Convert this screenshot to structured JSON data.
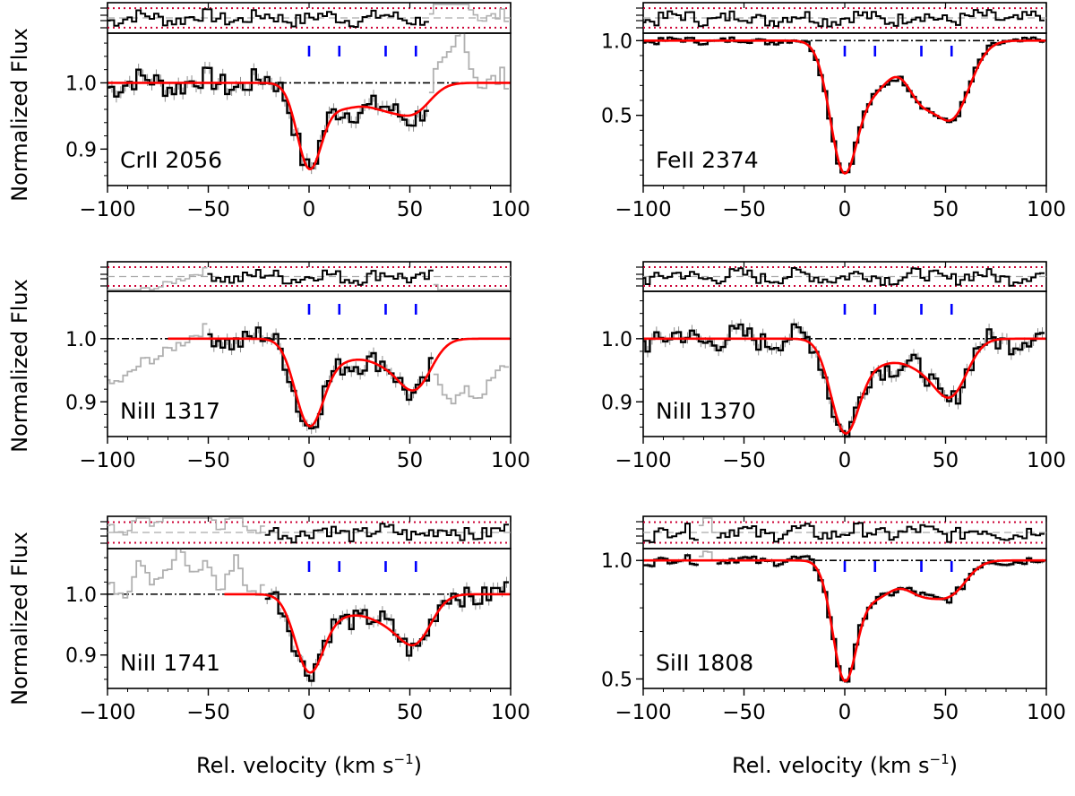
{
  "figure": {
    "ylabel": "Normalized Flux",
    "xlabel_main": "Rel. velocity  (km s",
    "xlabel_sup": "−1",
    "xlabel_close": ")"
  },
  "colors": {
    "data": "#000000",
    "masked": "#b0b0b0",
    "errbar": "#8c8c8c",
    "model": "#ff0000",
    "continuum": "#000000",
    "residual_band": "#cc0033",
    "component_ticks": "#0000ff",
    "residual_zero": "#aaaaaa"
  },
  "chart_data": [
    {
      "type": "line",
      "title": "CrII 2056",
      "xlim": [
        -100,
        100
      ],
      "ylim": [
        0.845,
        1.075
      ],
      "xticks": [
        -100,
        -50,
        0,
        50,
        100
      ],
      "xtick_labels": [
        "−100",
        "−50",
        "0",
        "50",
        "100"
      ],
      "yticks": [
        0.9,
        1.0
      ],
      "ytick_labels": [
        "0.9",
        "1.0"
      ],
      "component_velocities": [
        0,
        15,
        38,
        53
      ],
      "continuum": 1.0,
      "model": {
        "depths": [
          0.12,
          0.035,
          0.035,
          0.035
        ],
        "widths": [
          6,
          10,
          10,
          8
        ]
      },
      "noise": 0.01,
      "valid_range": [
        -100,
        60
      ],
      "masked_emission": [
        [
          62,
          1.01
        ],
        [
          68,
          1.03
        ],
        [
          72,
          1.05
        ],
        [
          76,
          1.09
        ],
        [
          80,
          1.03
        ],
        [
          85,
          1.0
        ]
      ],
      "masked_absorption": []
    },
    {
      "type": "line",
      "title": "FeII 2374",
      "xlim": [
        -100,
        100
      ],
      "ylim": [
        0.03,
        1.05
      ],
      "xticks": [
        -100,
        -50,
        0,
        50,
        100
      ],
      "xtick_labels": [
        "−100",
        "−50",
        "0",
        "50",
        "100"
      ],
      "yticks": [
        0.5,
        1.0
      ],
      "ytick_labels": [
        "0.5",
        "1.0"
      ],
      "component_velocities": [
        0,
        15,
        38,
        53
      ],
      "continuum": 1.0,
      "model": {
        "depths": [
          0.88,
          0.3,
          0.35,
          0.5
        ],
        "widths": [
          7,
          9,
          8,
          9
        ]
      },
      "noise": 0.012,
      "valid_range": [
        -100,
        100
      ],
      "masked_emission": [],
      "masked_absorption": []
    },
    {
      "type": "line",
      "title": "NiII 1317",
      "xlim": [
        -100,
        100
      ],
      "ylim": [
        0.845,
        1.075
      ],
      "xticks": [
        -100,
        -50,
        0,
        50,
        100
      ],
      "xtick_labels": [
        "−100",
        "−50",
        "0",
        "50",
        "100"
      ],
      "yticks": [
        0.9,
        1.0
      ],
      "ytick_labels": [
        "0.9",
        "1.0"
      ],
      "component_velocities": [
        0,
        15,
        38,
        53
      ],
      "continuum": 1.0,
      "model": {
        "depths": [
          0.13,
          0.03,
          0.035,
          0.07
        ],
        "widths": [
          7,
          10,
          10,
          8
        ]
      },
      "noise": 0.01,
      "valid_range": [
        -50,
        62
      ],
      "masked_emission": [],
      "masked_absorption": [
        [
          [
            -100,
            0.93
          ],
          [
            -90,
            0.94
          ],
          [
            -82,
            0.96
          ],
          [
            -75,
            0.97
          ],
          [
            -68,
            0.99
          ],
          [
            -60,
            1.0
          ],
          [
            -52,
            1.01
          ]
        ],
        [
          [
            62,
            0.94
          ],
          [
            68,
            0.91
          ],
          [
            72,
            0.9
          ],
          [
            78,
            0.92
          ],
          [
            84,
            0.91
          ],
          [
            90,
            0.93
          ],
          [
            96,
            0.95
          ],
          [
            100,
            0.96
          ]
        ]
      ]
    },
    {
      "type": "line",
      "title": "NiII 1370",
      "xlim": [
        -100,
        100
      ],
      "ylim": [
        0.845,
        1.075
      ],
      "xticks": [
        -100,
        -50,
        0,
        50,
        100
      ],
      "xtick_labels": [
        "−100",
        "−50",
        "0",
        "50",
        "100"
      ],
      "yticks": [
        0.9,
        1.0
      ],
      "ytick_labels": [
        "0.9",
        "1.0"
      ],
      "component_velocities": [
        0,
        15,
        38,
        53
      ],
      "continuum": 1.0,
      "model": {
        "depths": [
          0.14,
          0.035,
          0.04,
          0.08
        ],
        "widths": [
          7,
          10,
          10,
          8
        ]
      },
      "noise": 0.01,
      "valid_range": [
        -100,
        100
      ],
      "masked_emission": [],
      "masked_absorption": []
    },
    {
      "type": "line",
      "title": "NiII 1741",
      "xlim": [
        -100,
        100
      ],
      "ylim": [
        0.845,
        1.075
      ],
      "xticks": [
        -100,
        -50,
        0,
        50,
        100
      ],
      "xtick_labels": [
        "−100",
        "−50",
        "0",
        "50",
        "100"
      ],
      "yticks": [
        0.9,
        1.0
      ],
      "ytick_labels": [
        "0.9",
        "1.0"
      ],
      "component_velocities": [
        0,
        15,
        38,
        53
      ],
      "continuum": 1.0,
      "model": {
        "depths": [
          0.12,
          0.03,
          0.04,
          0.07
        ],
        "widths": [
          7,
          10,
          10,
          8
        ]
      },
      "noise": 0.01,
      "valid_range": [
        -22,
        100
      ],
      "masked_emission": [
        [
          -100,
          1.02
        ],
        [
          -90,
          1.0
        ],
        [
          -84,
          1.06
        ],
        [
          -78,
          1.02
        ],
        [
          -70,
          1.04
        ],
        [
          -64,
          1.08
        ],
        [
          -58,
          1.03
        ],
        [
          -50,
          1.05
        ],
        [
          -44,
          1.0
        ],
        [
          -36,
          1.07
        ],
        [
          -30,
          1.0
        ],
        [
          -24,
          1.0
        ]
      ],
      "masked_absorption": []
    },
    {
      "type": "line",
      "title": "SiII 1808",
      "xlim": [
        -100,
        100
      ],
      "ylim": [
        0.46,
        1.05
      ],
      "xticks": [
        -100,
        -50,
        0,
        50,
        100
      ],
      "xtick_labels": [
        "−100",
        "−50",
        "0",
        "50",
        "100"
      ],
      "yticks": [
        0.5,
        1.0
      ],
      "ytick_labels": [
        "0.5",
        "1.0"
      ],
      "component_velocities": [
        0,
        15,
        38,
        53
      ],
      "continuum": 1.0,
      "model": {
        "depths": [
          0.49,
          0.15,
          0.13,
          0.12
        ],
        "widths": [
          6,
          9,
          9,
          8
        ]
      },
      "noise": 0.01,
      "valid_range": [
        -100,
        100
      ],
      "masked_emission": [
        [
          -72,
          1.02
        ],
        [
          -68,
          1.05
        ],
        [
          -64,
          1.0
        ]
      ],
      "masked_absorption": []
    }
  ]
}
